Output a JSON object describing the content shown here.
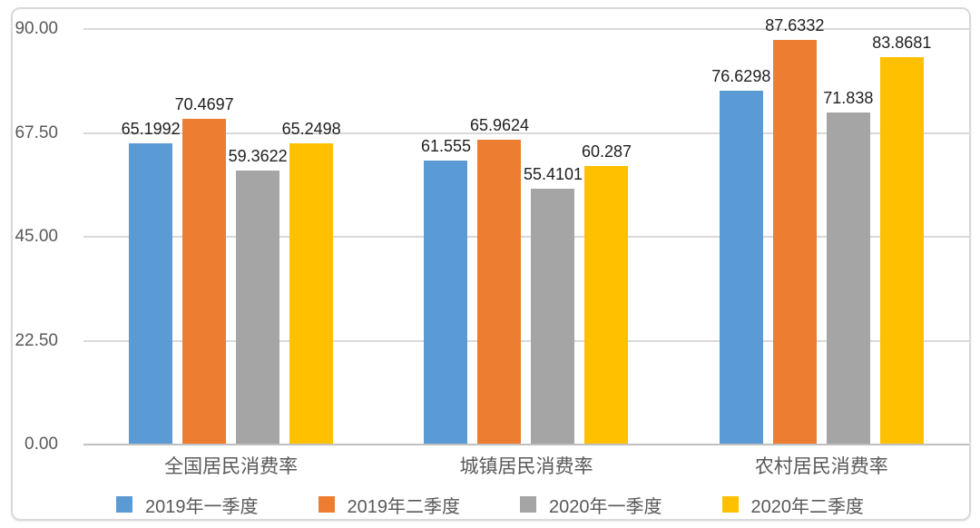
{
  "chart_data": {
    "type": "bar",
    "title": "",
    "xlabel": "",
    "ylabel": "",
    "categories": [
      "全国居民消费率",
      "城镇居民消费率",
      "农村居民消费率"
    ],
    "series": [
      {
        "name": "2019年一季度",
        "color": "#5B9BD5",
        "values": [
          65.1992,
          61.555,
          76.6298
        ]
      },
      {
        "name": "2019年二季度",
        "color": "#ED7D31",
        "values": [
          70.4697,
          65.9624,
          87.6332
        ]
      },
      {
        "name": "2020年一季度",
        "color": "#A5A5A5",
        "values": [
          59.3622,
          55.4101,
          71.838
        ]
      },
      {
        "name": "2020年二季度",
        "color": "#FFC000",
        "values": [
          65.2498,
          60.287,
          83.8681
        ]
      }
    ],
    "value_labels": [
      "65.1992",
      "61.555",
      "76.6298",
      "70.4697",
      "65.9624",
      "87.6332",
      "59.3622",
      "55.4101",
      "71.838",
      "65.2498",
      "60.287",
      "83.8681"
    ],
    "ylim": [
      0,
      90
    ],
    "y_ticks": [
      {
        "value": 90,
        "label": "90.00"
      },
      {
        "value": 67.5,
        "label": "67.50"
      },
      {
        "value": 45,
        "label": "45.00"
      },
      {
        "value": 22.5,
        "label": "22.50"
      },
      {
        "value": 0,
        "label": "0.00"
      }
    ],
    "grid": true,
    "legend_position": "bottom",
    "show_value_labels": true
  },
  "style": {
    "gridline_color": "#D9D9D9",
    "axis_line_color": "#BFBFBF",
    "tick_label_color": "#595959",
    "category_label_color": "#595959",
    "legend_label_color": "#595959",
    "value_label_color": "#1F1F1F",
    "card_border_color": "#D9D9D9",
    "background_color": "#FFFFFF"
  }
}
